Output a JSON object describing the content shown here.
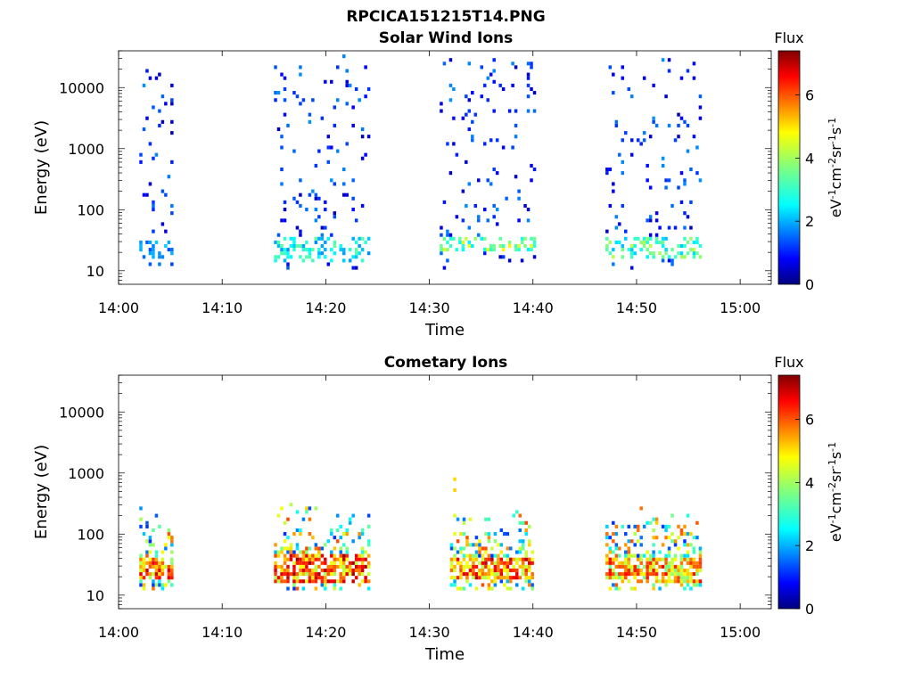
{
  "figure_title": "RPCICA151215T14.PNG",
  "colorbar": {
    "title": "Flux",
    "ticks": [
      "0",
      "2",
      "4",
      "6"
    ],
    "tick_values": [
      0,
      2,
      4,
      6
    ],
    "max": 7.4
  },
  "chart_data": [
    {
      "type": "heatmap",
      "title": "Solar Wind Ions",
      "xlabel": "Time",
      "ylabel": "Energy (eV)",
      "x_scale": "time",
      "x_ticks": [
        "14:00",
        "14:10",
        "14:20",
        "14:30",
        "14:40",
        "14:50",
        "15:00"
      ],
      "x_range": [
        "14:00",
        "15:03"
      ],
      "y_scale": "log",
      "y_ticks": [
        "10",
        "100",
        "1000",
        "10000"
      ],
      "y_range": [
        6,
        40000
      ],
      "colorbar_label": "eV-1cm-2sr-1s-1",
      "clusters": [
        {
          "start": "14:02",
          "end": "14:05",
          "emin": 10,
          "emax": 30000,
          "peak_low": 15,
          "peak_high": 30,
          "peak_flux": 2.5,
          "low_flux": 1.0
        },
        {
          "start": "14:15",
          "end": "14:24",
          "emin": 10,
          "emax": 35000,
          "peak_low": 14,
          "peak_high": 35,
          "peak_flux": 3.5,
          "low_flux": 1.0
        },
        {
          "start": "14:31",
          "end": "14:40",
          "emin": 10,
          "emax": 30000,
          "peak_low": 20,
          "peak_high": 35,
          "peak_flux": 4.8,
          "low_flux": 1.0
        },
        {
          "start": "14:47",
          "end": "14:56",
          "emin": 10,
          "emax": 30000,
          "peak_low": 16,
          "peak_high": 35,
          "peak_flux": 4.2,
          "low_flux": 1.0
        }
      ]
    },
    {
      "type": "heatmap",
      "title": "Cometary Ions",
      "xlabel": "Time",
      "ylabel": "Energy (eV)",
      "x_scale": "time",
      "x_ticks": [
        "14:00",
        "14:10",
        "14:20",
        "14:30",
        "14:40",
        "14:50",
        "15:00"
      ],
      "x_range": [
        "14:00",
        "15:03"
      ],
      "y_scale": "log",
      "y_ticks": [
        "10",
        "100",
        "1000",
        "10000"
      ],
      "y_range": [
        6,
        40000
      ],
      "colorbar_label": "eV-1cm-2sr-1s-1",
      "clusters": [
        {
          "start": "14:02",
          "end": "14:05",
          "emin": 12,
          "emax": 300,
          "peak_low": 18,
          "peak_high": 40,
          "peak_flux": 6.8,
          "low_flux": 3.0
        },
        {
          "start": "14:15",
          "end": "14:24",
          "emin": 12,
          "emax": 400,
          "peak_low": 15,
          "peak_high": 45,
          "peak_flux": 7.2,
          "low_flux": 3.0
        },
        {
          "start": "14:32",
          "end": "14:40",
          "emin": 12,
          "emax": 900,
          "peak_low": 18,
          "peak_high": 40,
          "peak_flux": 7.2,
          "low_flux": 3.0
        },
        {
          "start": "14:47",
          "end": "14:56",
          "emin": 12,
          "emax": 500,
          "peak_low": 16,
          "peak_high": 40,
          "peak_flux": 6.5,
          "low_flux": 3.0
        }
      ]
    }
  ]
}
